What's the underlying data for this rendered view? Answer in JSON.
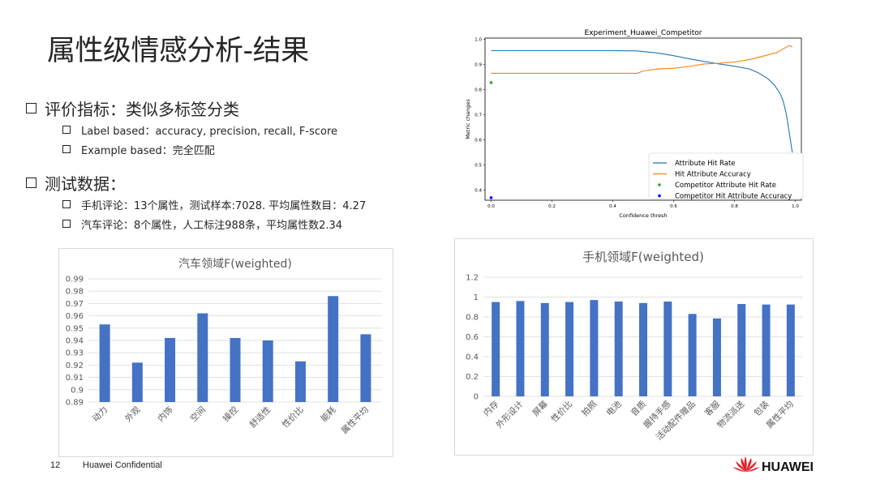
{
  "slide": {
    "title": "属性级情感分析-结果",
    "page_number": "12",
    "confidential": "Huawei Confidential",
    "brand_name": "HUAWEI"
  },
  "bullets": {
    "eval": {
      "label": "评价指标：类似多标签分类",
      "items": [
        "Label based：accuracy, precision, recall, F-score",
        "Example based：完全匹配"
      ]
    },
    "test": {
      "label": "测试数据：",
      "items": [
        "手机评论：13个属性，测试样本:7028. 平均属性数目：4.27",
        "汽车评论：8个属性，人工标注988条，平均属性数2.34"
      ]
    }
  },
  "colors": {
    "bar": "#4472c4",
    "line_blue": "#1f77b4",
    "line_orange": "#ff7f0e",
    "green": "#2ca02c",
    "blue_point": "#0000ff",
    "logo_red": "#e3222b"
  },
  "chart_data": [
    {
      "type": "line",
      "title": "Experiment_Huawei_Competitor",
      "xlabel": "Confidence thresh",
      "ylabel": "Metric changes",
      "xlim": [
        0,
        1
      ],
      "ylim": [
        0.35,
        1.0
      ],
      "xticks": [
        "0.0",
        "0.2",
        "0.4",
        "0.6",
        "0.8",
        "1.0"
      ],
      "yticks": [
        "0.4",
        "0.5",
        "0.6",
        "0.7",
        "0.8",
        "0.9",
        "1.0"
      ],
      "legend_position": "bottom-right",
      "series": [
        {
          "name": "Attribute Hit Rate",
          "color": "#1f77b4",
          "points": [
            [
              0,
              0.955
            ],
            [
              0.4,
              0.955
            ],
            [
              0.48,
              0.954
            ],
            [
              0.55,
              0.945
            ],
            [
              0.6,
              0.935
            ],
            [
              0.65,
              0.923
            ],
            [
              0.7,
              0.912
            ],
            [
              0.75,
              0.902
            ],
            [
              0.8,
              0.893
            ],
            [
              0.85,
              0.882
            ],
            [
              0.88,
              0.866
            ],
            [
              0.91,
              0.843
            ],
            [
              0.93,
              0.82
            ],
            [
              0.95,
              0.785
            ],
            [
              0.96,
              0.755
            ],
            [
              0.97,
              0.705
            ],
            [
              0.98,
              0.63
            ],
            [
              0.99,
              0.55
            ]
          ]
        },
        {
          "name": "Hit Attribute Accuracy",
          "color": "#ff7f0e",
          "points": [
            [
              0,
              0.865
            ],
            [
              0.48,
              0.865
            ],
            [
              0.5,
              0.874
            ],
            [
              0.55,
              0.882
            ],
            [
              0.6,
              0.885
            ],
            [
              0.65,
              0.892
            ],
            [
              0.7,
              0.902
            ],
            [
              0.75,
              0.905
            ],
            [
              0.8,
              0.91
            ],
            [
              0.85,
              0.92
            ],
            [
              0.9,
              0.935
            ],
            [
              0.94,
              0.948
            ],
            [
              0.96,
              0.962
            ],
            [
              0.98,
              0.975
            ],
            [
              0.99,
              0.97
            ]
          ]
        }
      ],
      "points": [
        {
          "name": "Competitor Attribute Hit Rate",
          "color": "#2ca02c",
          "x": 0,
          "y": 0.828
        },
        {
          "name": "Competitor Hit Attribute Accuracy",
          "color": "#0000ff",
          "x": 0,
          "y": 0.37
        }
      ]
    },
    {
      "type": "bar",
      "title": "汽车领域F(weighted)",
      "categories": [
        "动力",
        "外观",
        "内饰",
        "空间",
        "操控",
        "舒适性",
        "性价比",
        "能耗",
        "属性平均"
      ],
      "values": [
        0.953,
        0.922,
        0.942,
        0.962,
        0.942,
        0.94,
        0.923,
        0.976,
        0.945
      ],
      "ylim": [
        0.89,
        0.99
      ],
      "yticks": [
        "0.89",
        "0.9",
        "0.91",
        "0.92",
        "0.93",
        "0.94",
        "0.95",
        "0.96",
        "0.97",
        "0.98",
        "0.99"
      ]
    },
    {
      "type": "bar",
      "title": "手机领域F(weighted)",
      "categories": [
        "内存",
        "外形设计",
        "屏幕",
        "性价比",
        "拍照",
        "电池",
        "音质",
        "握持手感",
        "活动配件赠品",
        "客服",
        "物流派送",
        "包装",
        "属性平均"
      ],
      "values": [
        0.95,
        0.96,
        0.94,
        0.95,
        0.97,
        0.955,
        0.94,
        0.955,
        0.83,
        0.785,
        0.93,
        0.925,
        0.925
      ],
      "ylim": [
        0,
        1.2
      ],
      "yticks": [
        "0",
        "0.2",
        "0.4",
        "0.6",
        "0.8",
        "1",
        "1.2"
      ]
    }
  ]
}
